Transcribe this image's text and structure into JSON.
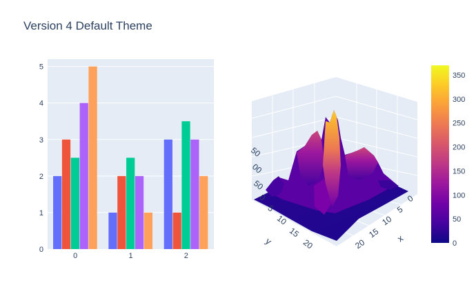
{
  "title": "Version 4 Default Theme",
  "chart_data": [
    {
      "type": "bar",
      "categories": [
        "0",
        "1",
        "2"
      ],
      "series": [
        {
          "values": [
            2,
            1,
            3
          ],
          "color": "#636efa"
        },
        {
          "values": [
            3,
            2,
            1
          ],
          "color": "#EF553B"
        },
        {
          "values": [
            2.5,
            2.5,
            3.5
          ],
          "color": "#00cc96"
        },
        {
          "values": [
            4,
            2,
            3
          ],
          "color": "#ab63fa"
        },
        {
          "values": [
            5,
            1,
            2
          ],
          "color": "#FFA15A"
        }
      ],
      "y_ticks": [
        "0",
        "1",
        "2",
        "3",
        "4",
        "5"
      ],
      "ylim": [
        0,
        5.2
      ],
      "grid": true,
      "plot_bgcolor": "#E5ECF6"
    },
    {
      "type": "surface",
      "x_label": "x",
      "y_label": "y",
      "x_ticks": [
        "0",
        "5",
        "10",
        "15",
        "20"
      ],
      "y_ticks": [
        "0",
        "5",
        "10",
        "15",
        "20"
      ],
      "z_ticks_visible": [
        "50",
        "00",
        "50"
      ],
      "colorbar": {
        "ticks": [
          "0",
          "50",
          "100",
          "150",
          "200",
          "250",
          "300",
          "350"
        ],
        "range": [
          0,
          370
        ],
        "colorscale": [
          "#0d0887",
          "#46039f",
          "#7201a8",
          "#9c179e",
          "#bd3786",
          "#d8576b",
          "#ed7953",
          "#fb9f3a",
          "#fdca26",
          "#f0f921"
        ]
      }
    }
  ]
}
